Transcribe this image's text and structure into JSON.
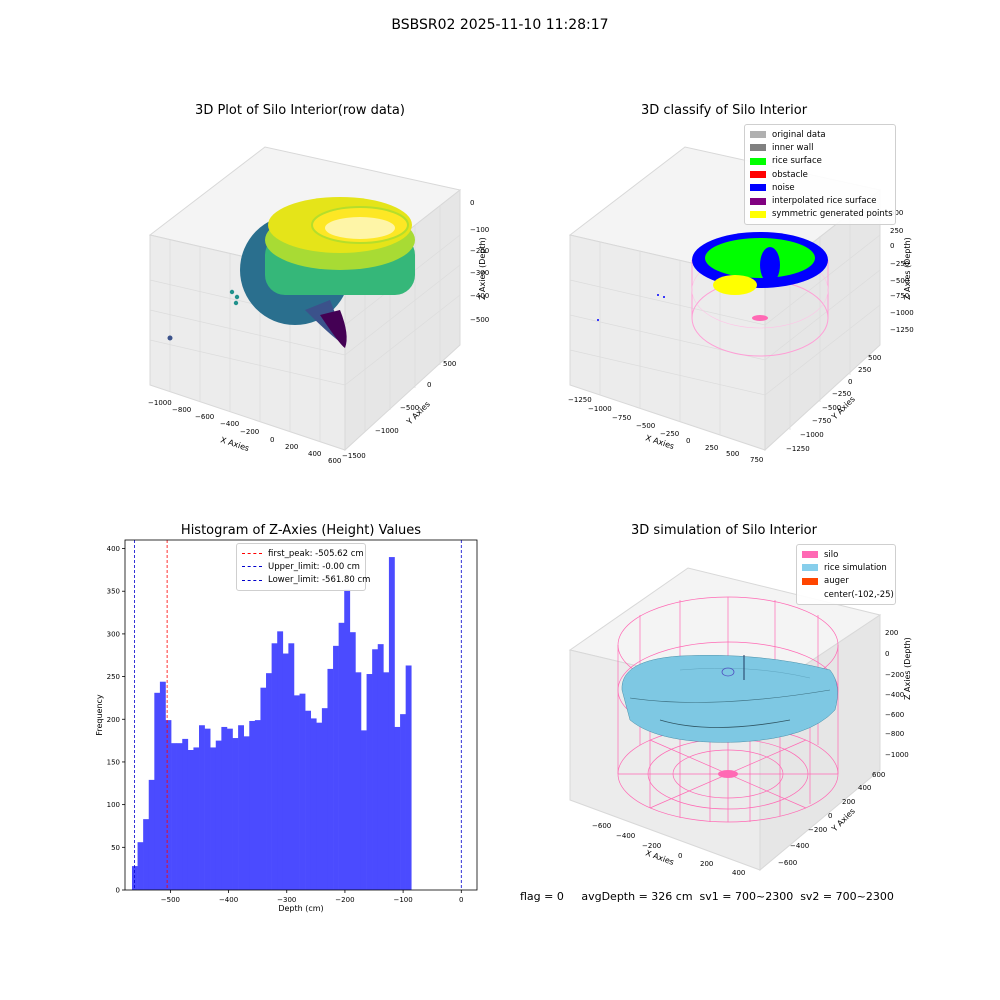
{
  "suptitle": "BSBSR02 2025-11-10 11:28:17",
  "chart_data": [
    {
      "type": "scatter",
      "title": "3D Plot of Silo Interior(row data)",
      "xlabel": "X Axies",
      "ylabel": "Y Axies",
      "zlabel": "Z Axies (Depth)",
      "x_ticks": [
        "−1000",
        "−800",
        "−600",
        "−400",
        "−200",
        "0",
        "200",
        "400",
        "600"
      ],
      "y_ticks": [
        "−1500",
        "−1000",
        "−500",
        "0",
        "500"
      ],
      "z_ticks": [
        "−500",
        "−400",
        "−300",
        "−200",
        "−100",
        "0"
      ],
      "colormap": "viridis"
    },
    {
      "type": "scatter",
      "title": "3D classify of Silo Interior",
      "xlabel": "X Axies",
      "ylabel": "Y Axies",
      "zlabel": "Z Axies (Depth)",
      "x_ticks": [
        "−1250",
        "−1000",
        "−750",
        "−500",
        "−250",
        "0",
        "250",
        "500",
        "750"
      ],
      "y_ticks": [
        "−1250",
        "−1000",
        "−750",
        "−500",
        "−250",
        "0",
        "250",
        "500"
      ],
      "z_ticks": [
        "−1250",
        "−1000",
        "−750",
        "−500",
        "−250",
        "0",
        "250",
        "500"
      ],
      "legend": [
        {
          "label": "original data",
          "color": "#b0b0b0"
        },
        {
          "label": "inner wall",
          "color": "#808080"
        },
        {
          "label": "rice surface",
          "color": "#00ff00"
        },
        {
          "label": "obstacle",
          "color": "#ff0000"
        },
        {
          "label": "noise",
          "color": "#0000ff"
        },
        {
          "label": "interpolated rice surface",
          "color": "#800080"
        },
        {
          "label": "symmetric generated points",
          "color": "#ffff00"
        }
      ]
    },
    {
      "type": "bar",
      "title": "Histogram of Z-Axies (Height) Values",
      "xlabel": "Depth (cm)",
      "ylabel": "Frequency",
      "xlim": [
        -578,
        27
      ],
      "ylim": [
        0,
        410
      ],
      "x_ticks": [
        -500,
        -400,
        -300,
        -200,
        -100,
        0
      ],
      "y_ticks": [
        0,
        50,
        100,
        150,
        200,
        250,
        300,
        350,
        400
      ],
      "bin_start": -566,
      "bin_width": 9.6,
      "values": [
        28,
        56,
        83,
        129,
        231,
        244,
        199,
        172,
        172,
        177,
        164,
        167,
        193,
        189,
        167,
        175,
        191,
        189,
        178,
        193,
        180,
        198,
        199,
        237,
        254,
        289,
        303,
        277,
        289,
        228,
        230,
        210,
        201,
        196,
        213,
        259,
        286,
        313,
        352,
        302,
        255,
        187,
        253,
        282,
        288,
        255,
        390,
        191,
        206,
        263
      ],
      "bar_color": "#4b4bff",
      "reference_lines": [
        {
          "label": "first_peak: -505.62 cm",
          "x": -505.62,
          "color": "#ff0000"
        },
        {
          "label": "Upper_limit: -0.00 cm",
          "x": -0.0,
          "color": "#0000cc"
        },
        {
          "label": "Lower_limit: -561.80 cm",
          "x": -561.8,
          "color": "#0000cc"
        }
      ]
    },
    {
      "type": "surface",
      "title": "3D simulation of Silo Interior",
      "xlabel": "X Axies",
      "ylabel": "Y Axies",
      "zlabel": "Z Axies (Depth)",
      "x_ticks": [
        "−600",
        "−400",
        "−200",
        "0",
        "200",
        "400"
      ],
      "y_ticks": [
        "−600",
        "−400",
        "−200",
        "0",
        "200",
        "400",
        "600"
      ],
      "z_ticks": [
        "−1000",
        "−800",
        "−600",
        "−400",
        "−200",
        "0",
        "200"
      ],
      "legend": [
        {
          "label": "silo",
          "color": "#ff69b4"
        },
        {
          "label": "rice simulation",
          "color": "#87ceeb"
        },
        {
          "label": "auger",
          "color": "#ff4500"
        },
        {
          "label": "center(-102,-25)",
          "color": ""
        }
      ]
    }
  ],
  "footer": "flag = 0     avgDepth = 326 cm  sv1 = 700~2300  sv2 = 700~2300"
}
